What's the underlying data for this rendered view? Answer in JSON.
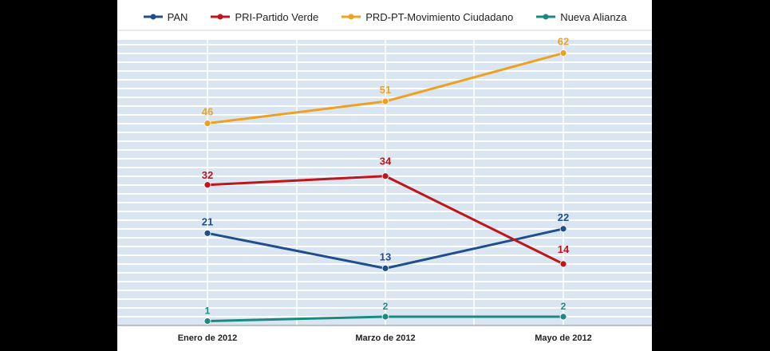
{
  "chart_data": {
    "type": "line",
    "categories": [
      "Enero de 2012",
      "Marzo de 2012",
      "Mayo de 2012"
    ],
    "series": [
      {
        "name": "PAN",
        "color": "#1f4e8c",
        "values": [
          21,
          13,
          22
        ]
      },
      {
        "name": "PRI-Partido Verde",
        "color": "#c0151b",
        "values": [
          32,
          34,
          14
        ]
      },
      {
        "name": "PRD-PT-Movimiento Ciudadano",
        "color": "#f0a020",
        "values": [
          46,
          51,
          62
        ]
      },
      {
        "name": "Nueva Alianza",
        "color": "#1a8a80",
        "values": [
          1,
          2,
          2
        ]
      }
    ],
    "ylim": [
      0,
      65
    ],
    "legend_position": "top",
    "grid": true
  }
}
